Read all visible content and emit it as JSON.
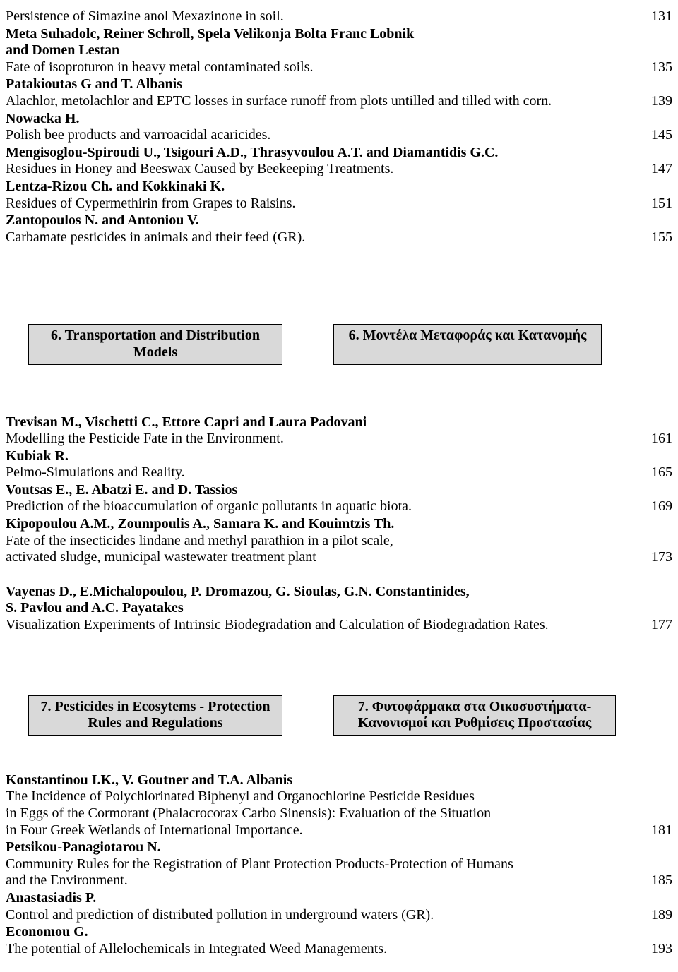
{
  "block1": [
    {
      "lines": [
        [
          "Persistence of Simazine anol Mexazinone in soil.",
          "131"
        ]
      ]
    },
    {
      "boldLines": [
        "Meta Suhadolc, Reiner Schroll, Spela Velikonja Bolta Franc Lobnik",
        "and Domen Lestan"
      ],
      "lines": [
        [
          "Fate of isoproturon in heavy metal contaminated soils.",
          "135"
        ]
      ]
    },
    {
      "boldLines": [
        "Patakioutas G and T. Albanis"
      ],
      "lines": [
        [
          "Alachlor, metolachlor and EPTC losses in surface runoff from plots untilled and tilled with corn.",
          "139"
        ]
      ]
    },
    {
      "boldLines": [
        "Nowacka H."
      ],
      "lines": [
        [
          "Polish bee products and varroacidal acaricides.",
          "145"
        ]
      ]
    },
    {
      "boldLines": [
        "Mengisoglou-Spiroudi U., Tsigouri A.D., Thrasyvoulou A.T. and Diamantidis G.C."
      ],
      "lines": [
        [
          "Residues in Honey and Beeswax Caused by Beekeeping Treatments.",
          "147"
        ]
      ]
    },
    {
      "boldLines": [
        "Lentza-Rizou Ch. and Kokkinaki K."
      ],
      "lines": [
        [
          "Residues of Cypermethirin from Grapes to Raisins.",
          "151"
        ]
      ]
    },
    {
      "boldLines": [
        "Zantopoulos N. and Antoniou  V."
      ],
      "lines": [
        [
          "Carbamate pesticides in animals and their feed (GR).",
          "155"
        ]
      ]
    }
  ],
  "section6": {
    "left": [
      "6. Transportation and Distribution",
      "Models"
    ],
    "right": [
      "6. Μοντέλα Μεταφοράς και Κατανομής"
    ]
  },
  "block2": [
    {
      "boldLines": [
        "Trevisan M., Vischetti C., Ettore Capri and Laura Padovani"
      ],
      "lines": [
        [
          "Modelling the Pesticide Fate in the Environment.",
          "161"
        ]
      ]
    },
    {
      "boldLines": [
        "Kubiak R."
      ],
      "lines": [
        [
          "Pelmo-Simulations and Reality.",
          "165"
        ]
      ]
    },
    {
      "boldLines": [
        "Voutsas E., E. Abatzi E. and D. Tassios"
      ],
      "lines": [
        [
          "Prediction of the bioaccumulation of organic pollutants in aquatic biota.",
          "169"
        ]
      ]
    },
    {
      "boldLines": [
        "Kipopoulou A.M., Zoumpoulis A., Samara K. and Kouimtzis Th."
      ],
      "lines": [
        [
          "Fate of the insecticides lindane and methyl parathion in a pilot scale,",
          ""
        ],
        [
          "activated sludge, municipal wastewater treatment plant",
          "173"
        ]
      ]
    }
  ],
  "block2b": [
    {
      "boldLines": [
        "Vayenas D., E.Michalopoulou, P. Dromazou, G. Sioulas, G.N. Constantinides,",
        "S. Pavlou and A.C. Payatakes"
      ],
      "lines": [
        [
          "Visualization Experiments of Intrinsic Biodegradation and Calculation of Biodegradation Rates.",
          "177"
        ]
      ]
    }
  ],
  "section7": {
    "left": [
      "7. Pesticides in Ecosytems - Protection",
      "Rules and Regulations"
    ],
    "right": [
      "7. Φυτοφάρμακα στα Οικοσυστήματα-",
      "Κανονισμοί και Ρυθμίσεις Προστασίας"
    ]
  },
  "block3": [
    {
      "boldLines": [
        "Konstantinou I.K., V. Goutner and T.A. Albanis"
      ],
      "lines": [
        [
          "The Incidence of Polychlorinated Biphenyl and Organochlorine Pesticide Residues",
          ""
        ],
        [
          " in Eggs of the Cormorant (Phalacrocorax Carbo Sinensis): Evaluation of the Situation",
          ""
        ],
        [
          "in Four Greek Wetlands of International Importance.",
          "181"
        ]
      ]
    },
    {
      "boldLines": [
        "Petsikou-Panagiotarou N."
      ],
      "lines": [
        [
          "Community Rules for the Registration of Plant Protection Products-Protection of Humans",
          ""
        ],
        [
          "and the Environment.",
          "185"
        ]
      ]
    },
    {
      "boldLines": [
        "Anastasiadis P."
      ],
      "lines": [
        [
          "Control and prediction of distributed pollution in underground waters (GR).",
          "189"
        ]
      ]
    },
    {
      "boldLines": [
        "Economou G."
      ],
      "lines": [
        [
          "The potential of Allelochemicals in Integrated Weed Managements.",
          "193"
        ]
      ]
    }
  ]
}
